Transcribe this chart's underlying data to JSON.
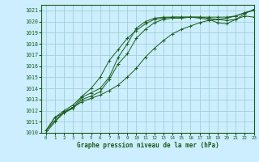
{
  "xlabel": "Graphe pression niveau de la mer (hPa)",
  "bg_color": "#cceeff",
  "grid_color": "#99cccc",
  "line_color": "#1a5c1a",
  "xlim": [
    -0.5,
    23
  ],
  "ylim": [
    1010,
    1021.5
  ],
  "xticks": [
    0,
    1,
    2,
    3,
    4,
    5,
    6,
    7,
    8,
    9,
    10,
    11,
    12,
    13,
    14,
    15,
    16,
    17,
    18,
    19,
    20,
    21,
    22,
    23
  ],
  "yticks": [
    1010,
    1011,
    1012,
    1013,
    1014,
    1015,
    1016,
    1017,
    1018,
    1019,
    1020,
    1021
  ],
  "series": [
    [
      1010.2,
      1011.4,
      1011.8,
      1012.2,
      1013.0,
      1013.3,
      1013.7,
      1014.8,
      1016.2,
      1017.1,
      1018.5,
      1019.3,
      1019.9,
      1020.2,
      1020.3,
      1020.3,
      1020.4,
      1020.4,
      1020.4,
      1020.4,
      1020.4,
      1020.5,
      1020.8,
      1021.0
    ],
    [
      1010.2,
      1011.1,
      1011.9,
      1012.3,
      1013.2,
      1013.6,
      1014.0,
      1015.0,
      1016.8,
      1018.0,
      1019.4,
      1020.0,
      1020.3,
      1020.4,
      1020.4,
      1020.4,
      1020.4,
      1020.4,
      1020.3,
      1020.2,
      1020.1,
      1020.2,
      1020.5,
      1020.4
    ],
    [
      1010.2,
      1011.4,
      1012.0,
      1012.5,
      1013.3,
      1014.0,
      1015.0,
      1016.5,
      1017.5,
      1018.5,
      1019.2,
      1019.8,
      1020.2,
      1020.3,
      1020.4,
      1020.4,
      1020.4,
      1020.3,
      1020.2,
      1019.9,
      1019.8,
      1020.2,
      1020.7,
      1021.1
    ],
    [
      1010.0,
      1011.0,
      1011.8,
      1012.3,
      1012.8,
      1013.1,
      1013.4,
      1013.8,
      1014.3,
      1015.0,
      1015.8,
      1016.8,
      1017.6,
      1018.3,
      1018.9,
      1019.3,
      1019.6,
      1019.9,
      1020.1,
      1020.2,
      1020.3,
      1020.5,
      1020.8,
      1021.0
    ]
  ]
}
